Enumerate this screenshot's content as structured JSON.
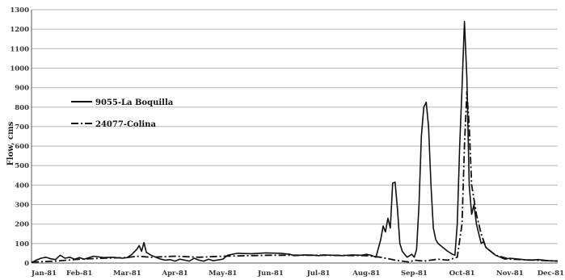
{
  "chart_data": {
    "type": "line",
    "title": "",
    "xlabel": "",
    "ylabel": "Flow, cms",
    "ylim": [
      0,
      1300
    ],
    "yticks": [
      0,
      100,
      200,
      300,
      400,
      500,
      600,
      700,
      800,
      900,
      1000,
      1100,
      1200,
      1300
    ],
    "xlim": [
      "Jan-81",
      "Dec-81"
    ],
    "xticks": [
      "Jan-81",
      "Feb-81",
      "Mar-81",
      "Apr-81",
      "May-81",
      "Jun-81",
      "Jul-81",
      "Aug-81",
      "Sep-81",
      "Oct-81",
      "Nov-81",
      "Dec-81"
    ],
    "grid": "horizontal",
    "legend_position": "left-center",
    "series": [
      {
        "name": "9055-La Boquilla",
        "style": "solid",
        "color": "#111111",
        "points": [
          [
            0.0,
            3
          ],
          [
            0.1,
            15
          ],
          [
            0.2,
            25
          ],
          [
            0.3,
            30
          ],
          [
            0.4,
            22
          ],
          [
            0.5,
            18
          ],
          [
            0.6,
            40
          ],
          [
            0.7,
            25
          ],
          [
            0.8,
            30
          ],
          [
            0.9,
            20
          ],
          [
            1.0,
            28
          ],
          [
            1.1,
            20
          ],
          [
            1.3,
            35
          ],
          [
            1.5,
            28
          ],
          [
            1.7,
            30
          ],
          [
            1.9,
            25
          ],
          [
            2.0,
            28
          ],
          [
            2.1,
            45
          ],
          [
            2.2,
            70
          ],
          [
            2.25,
            90
          ],
          [
            2.3,
            60
          ],
          [
            2.35,
            105
          ],
          [
            2.4,
            55
          ],
          [
            2.5,
            40
          ],
          [
            2.6,
            30
          ],
          [
            2.7,
            20
          ],
          [
            2.8,
            15
          ],
          [
            2.9,
            18
          ],
          [
            3.0,
            10
          ],
          [
            3.1,
            20
          ],
          [
            3.2,
            15
          ],
          [
            3.3,
            10
          ],
          [
            3.4,
            25
          ],
          [
            3.5,
            15
          ],
          [
            3.6,
            10
          ],
          [
            3.7,
            20
          ],
          [
            3.8,
            12
          ],
          [
            4.0,
            20
          ],
          [
            4.1,
            40
          ],
          [
            4.3,
            50
          ],
          [
            4.6,
            48
          ],
          [
            4.9,
            52
          ],
          [
            5.2,
            50
          ],
          [
            5.4,
            45
          ],
          [
            5.5,
            38
          ],
          [
            5.7,
            42
          ],
          [
            5.9,
            40
          ],
          [
            6.0,
            38
          ],
          [
            6.1,
            42
          ],
          [
            6.3,
            40
          ],
          [
            6.5,
            38
          ],
          [
            6.7,
            42
          ],
          [
            6.9,
            40
          ],
          [
            7.0,
            45
          ],
          [
            7.1,
            40
          ],
          [
            7.2,
            30
          ],
          [
            7.3,
            120
          ],
          [
            7.35,
            190
          ],
          [
            7.4,
            160
          ],
          [
            7.45,
            230
          ],
          [
            7.5,
            180
          ],
          [
            7.55,
            410
          ],
          [
            7.6,
            415
          ],
          [
            7.65,
            280
          ],
          [
            7.7,
            100
          ],
          [
            7.75,
            60
          ],
          [
            7.85,
            30
          ],
          [
            7.95,
            45
          ],
          [
            8.0,
            30
          ],
          [
            8.05,
            70
          ],
          [
            8.1,
            300
          ],
          [
            8.15,
            650
          ],
          [
            8.2,
            800
          ],
          [
            8.25,
            825
          ],
          [
            8.3,
            700
          ],
          [
            8.35,
            400
          ],
          [
            8.4,
            180
          ],
          [
            8.45,
            120
          ],
          [
            8.5,
            100
          ],
          [
            8.6,
            80
          ],
          [
            8.7,
            60
          ],
          [
            8.8,
            45
          ],
          [
            8.85,
            40
          ],
          [
            8.9,
            200
          ],
          [
            8.95,
            600
          ],
          [
            9.0,
            900
          ],
          [
            9.05,
            1240
          ],
          [
            9.1,
            950
          ],
          [
            9.15,
            400
          ],
          [
            9.2,
            250
          ],
          [
            9.25,
            300
          ],
          [
            9.3,
            200
          ],
          [
            9.35,
            150
          ],
          [
            9.4,
            100
          ],
          [
            9.45,
            110
          ],
          [
            9.5,
            80
          ],
          [
            9.6,
            60
          ],
          [
            9.7,
            40
          ],
          [
            9.8,
            30
          ],
          [
            9.9,
            20
          ],
          [
            10.0,
            25
          ],
          [
            10.2,
            20
          ],
          [
            10.4,
            15
          ],
          [
            10.6,
            18
          ],
          [
            10.8,
            12
          ],
          [
            11.0,
            10
          ]
        ]
      },
      {
        "name": "24077-Colina",
        "style": "dash-dot",
        "color": "#111111",
        "points": [
          [
            0.0,
            5
          ],
          [
            0.5,
            10
          ],
          [
            1.0,
            20
          ],
          [
            1.5,
            25
          ],
          [
            2.0,
            28
          ],
          [
            2.2,
            35
          ],
          [
            2.5,
            30
          ],
          [
            3.0,
            35
          ],
          [
            3.5,
            30
          ],
          [
            4.0,
            35
          ],
          [
            5.0,
            40
          ],
          [
            6.0,
            40
          ],
          [
            7.0,
            38
          ],
          [
            7.3,
            30
          ],
          [
            7.6,
            15
          ],
          [
            7.9,
            5
          ],
          [
            8.0,
            15
          ],
          [
            8.2,
            10
          ],
          [
            8.5,
            20
          ],
          [
            8.7,
            15
          ],
          [
            8.9,
            30
          ],
          [
            9.0,
            200
          ],
          [
            9.05,
            600
          ],
          [
            9.1,
            880
          ],
          [
            9.15,
            700
          ],
          [
            9.2,
            400
          ],
          [
            9.3,
            250
          ],
          [
            9.4,
            150
          ],
          [
            9.5,
            80
          ],
          [
            9.7,
            40
          ],
          [
            10.0,
            20
          ],
          [
            10.5,
            15
          ],
          [
            11.0,
            10
          ]
        ]
      }
    ]
  }
}
